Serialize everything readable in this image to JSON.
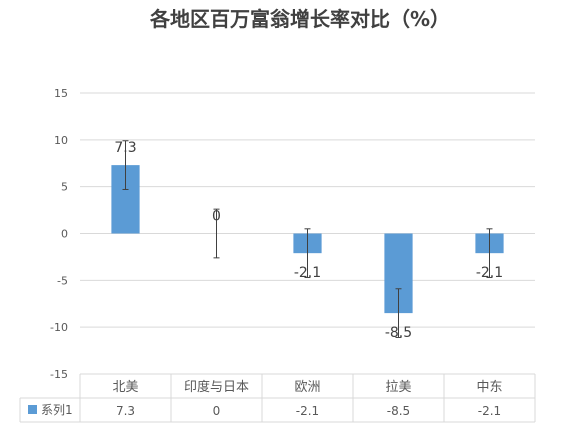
{
  "chart_data": {
    "type": "bar",
    "title": "各地区百万富翁增长率对比（%）",
    "categories": [
      "北美",
      "印度与日本",
      "欧洲",
      "拉美",
      "中东"
    ],
    "series": [
      {
        "name": "系列1",
        "values": [
          7.3,
          0,
          -2.1,
          -8.5,
          -2.1
        ],
        "data_labels": [
          "7.3",
          "0",
          "-2.1",
          "-8.5",
          "-2.1"
        ],
        "error_bars": [
          2.6,
          2.6,
          2.6,
          2.6,
          2.6
        ],
        "color": "#5b9bd5"
      }
    ],
    "ylim": [
      -15,
      15
    ],
    "yticks": [
      15,
      10,
      5,
      0,
      -5,
      -10,
      -15
    ],
    "grid": true,
    "data_table": true,
    "xlabel": "",
    "ylabel": ""
  },
  "colors": {
    "grid": "#d9d9d9",
    "text": "#595959",
    "title": "#404040",
    "error_bar": "#404040"
  }
}
